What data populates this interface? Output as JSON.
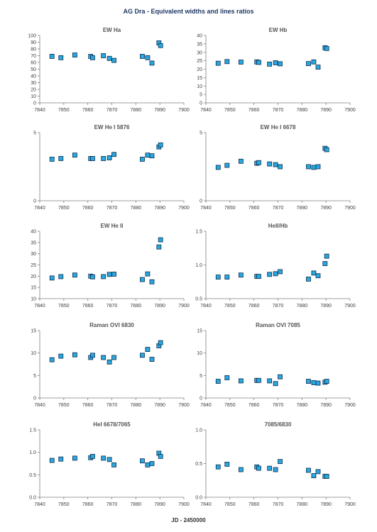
{
  "figure": {
    "title": "AG Dra - Equivalent widths and lines ratios",
    "xlabel": "JD - 2450000",
    "marker_fill": "#29a8e0",
    "marker_stroke": "#0d2d4e",
    "axis_color": "#7f7f7f"
  },
  "chart_data": [
    {
      "type": "scatter",
      "title": "EW Ha",
      "xlim": [
        7840,
        7900
      ],
      "xticks": [
        7840,
        7850,
        7860,
        7870,
        7880,
        7890,
        7900
      ],
      "xtick_labels": [
        "7840",
        "7850",
        "7860",
        "7870",
        "7880",
        "7890",
        "7900"
      ],
      "ylim": [
        0,
        100
      ],
      "yticks": [
        0,
        10,
        20,
        30,
        40,
        50,
        60,
        70,
        80,
        90,
        100
      ],
      "ytick_labels": [
        "0",
        "10",
        "20",
        "30",
        "40",
        "50",
        "60",
        "70",
        "80",
        "90",
        "100"
      ],
      "x": [
        7845.1,
        7848.8,
        7854.6,
        7861.2,
        7862.0,
        7866.5,
        7869.0,
        7870.9,
        7882.7,
        7884.9,
        7886.7,
        7889.6,
        7890.3
      ],
      "y": [
        69,
        67,
        71,
        69,
        67,
        70,
        66,
        63,
        69,
        67,
        59,
        89,
        85
      ]
    },
    {
      "type": "scatter",
      "title": "EW Hb",
      "xlim": [
        7840,
        7900
      ],
      "xticks": [
        7840,
        7850,
        7860,
        7870,
        7880,
        7890,
        7900
      ],
      "xtick_labels": [
        "7840",
        "7850",
        "7860",
        "7870",
        "7880",
        "7890",
        "7900"
      ],
      "ylim": [
        0,
        40
      ],
      "yticks": [
        0,
        5,
        10,
        15,
        20,
        25,
        30,
        35,
        40
      ],
      "ytick_labels": [
        "0",
        "5",
        "10",
        "15",
        "20",
        "25",
        "30",
        "35",
        "40"
      ],
      "x": [
        7845.1,
        7848.8,
        7854.6,
        7861.2,
        7862.0,
        7866.5,
        7869.0,
        7870.9,
        7882.7,
        7884.9,
        7886.7,
        7889.6,
        7890.3
      ],
      "y": [
        23.5,
        24.5,
        24.2,
        24.3,
        24.0,
        23.0,
        23.8,
        23.2,
        23.3,
        24.3,
        21.2,
        32.7,
        32.3
      ]
    },
    {
      "type": "scatter",
      "title": "EW He I 5876",
      "xlim": [
        7840,
        7900
      ],
      "xticks": [
        7840,
        7850,
        7860,
        7870,
        7880,
        7890,
        7900
      ],
      "xtick_labels": [
        "7840",
        "7850",
        "7860",
        "7870",
        "7880",
        "7890",
        "7900"
      ],
      "ylim": [
        0,
        5
      ],
      "yticks": [
        0,
        5
      ],
      "ytick_labels": [
        "0",
        "5"
      ],
      "x": [
        7845.1,
        7848.8,
        7854.6,
        7861.2,
        7862.0,
        7866.5,
        7869.0,
        7870.9,
        7882.7,
        7884.9,
        7886.7,
        7889.6,
        7890.3
      ],
      "y": [
        3.05,
        3.1,
        3.35,
        3.1,
        3.1,
        3.1,
        3.15,
        3.4,
        3.05,
        3.35,
        3.3,
        3.95,
        4.1
      ]
    },
    {
      "type": "scatter",
      "title": "EW He I 6678",
      "xlim": [
        7840,
        7900
      ],
      "xticks": [
        7840,
        7850,
        7860,
        7870,
        7880,
        7890,
        7900
      ],
      "xtick_labels": [
        "7840",
        "7850",
        "7860",
        "7870",
        "7880",
        "7890",
        "7900"
      ],
      "ylim": [
        0,
        5
      ],
      "yticks": [
        0,
        5
      ],
      "ytick_labels": [
        "0",
        "5"
      ],
      "x": [
        7845.1,
        7848.8,
        7854.6,
        7861.2,
        7862.0,
        7866.5,
        7869.0,
        7870.9,
        7882.7,
        7884.9,
        7886.7,
        7889.6,
        7890.3
      ],
      "y": [
        2.45,
        2.6,
        2.9,
        2.75,
        2.8,
        2.7,
        2.65,
        2.5,
        2.5,
        2.45,
        2.5,
        3.85,
        3.75
      ]
    },
    {
      "type": "scatter",
      "title": "EW He II",
      "xlim": [
        7840,
        7900
      ],
      "xticks": [
        7840,
        7850,
        7860,
        7870,
        7880,
        7890,
        7900
      ],
      "xtick_labels": [
        "7840",
        "7850",
        "7860",
        "7870",
        "7880",
        "7890",
        "7900"
      ],
      "ylim": [
        10,
        40
      ],
      "yticks": [
        10,
        15,
        20,
        25,
        30,
        35,
        40
      ],
      "ytick_labels": [
        "10",
        "15",
        "20",
        "25",
        "30",
        "35",
        "40"
      ],
      "x": [
        7845.1,
        7848.8,
        7854.6,
        7861.2,
        7862.0,
        7866.5,
        7869.0,
        7870.9,
        7882.7,
        7884.9,
        7886.7,
        7889.6,
        7890.3
      ],
      "y": [
        19.2,
        19.8,
        20.5,
        20.0,
        19.7,
        19.8,
        20.8,
        20.9,
        18.5,
        21.0,
        17.5,
        33.0,
        36.2
      ]
    },
    {
      "type": "scatter",
      "title": "HeII/Hb",
      "xlim": [
        7840,
        7900
      ],
      "xticks": [
        7840,
        7850,
        7860,
        7870,
        7880,
        7890,
        7900
      ],
      "xtick_labels": [
        "7840",
        "7850",
        "7860",
        "7870",
        "7880",
        "7890",
        "7900"
      ],
      "ylim": [
        0.5,
        1.5
      ],
      "yticks": [
        0.5,
        1.0,
        1.5
      ],
      "ytick_labels": [
        "0.5",
        "1.0",
        "1.5"
      ],
      "x": [
        7845.1,
        7848.8,
        7854.6,
        7861.2,
        7862.0,
        7866.5,
        7869.0,
        7870.9,
        7882.7,
        7884.9,
        7886.7,
        7889.6,
        7890.3
      ],
      "y": [
        0.82,
        0.82,
        0.85,
        0.83,
        0.83,
        0.86,
        0.87,
        0.9,
        0.79,
        0.88,
        0.84,
        1.02,
        1.13
      ]
    },
    {
      "type": "scatter",
      "title": "Raman OVI 6830",
      "xlim": [
        7840,
        7900
      ],
      "xticks": [
        7840,
        7850,
        7860,
        7870,
        7880,
        7890,
        7900
      ],
      "xtick_labels": [
        "7840",
        "7850",
        "7860",
        "7870",
        "7880",
        "7890",
        "7900"
      ],
      "ylim": [
        0,
        15
      ],
      "yticks": [
        0,
        5,
        10,
        15
      ],
      "ytick_labels": [
        "0",
        "5",
        "10",
        "15"
      ],
      "x": [
        7845.1,
        7848.8,
        7854.6,
        7861.2,
        7862.0,
        7866.5,
        7869.0,
        7870.9,
        7882.7,
        7884.9,
        7886.7,
        7889.6,
        7890.3
      ],
      "y": [
        8.5,
        9.3,
        9.6,
        9.0,
        9.5,
        9.0,
        8.0,
        9.0,
        9.5,
        10.8,
        8.6,
        11.6,
        12.3
      ]
    },
    {
      "type": "scatter",
      "title": "Raman OVI 7085",
      "xlim": [
        7840,
        7900
      ],
      "xticks": [
        7840,
        7850,
        7860,
        7870,
        7880,
        7890,
        7900
      ],
      "xtick_labels": [
        "7840",
        "7850",
        "7860",
        "7870",
        "7880",
        "7890",
        "7900"
      ],
      "ylim": [
        0,
        15
      ],
      "yticks": [
        0,
        5,
        10,
        15
      ],
      "ytick_labels": [
        "0",
        "5",
        "10",
        "15"
      ],
      "x": [
        7845.1,
        7848.8,
        7854.6,
        7861.2,
        7862.0,
        7866.5,
        7869.0,
        7870.9,
        7882.7,
        7884.9,
        7886.7,
        7889.6,
        7890.3
      ],
      "y": [
        3.7,
        4.5,
        3.8,
        3.9,
        3.9,
        3.8,
        3.2,
        4.7,
        3.7,
        3.4,
        3.3,
        3.5,
        3.7
      ]
    },
    {
      "type": "scatter",
      "title": "HeI 6678/7065",
      "xlim": [
        7840,
        7900
      ],
      "xticks": [
        7840,
        7850,
        7860,
        7870,
        7880,
        7890,
        7900
      ],
      "xtick_labels": [
        "7840",
        "7850",
        "7860",
        "7870",
        "7880",
        "7890",
        "7900"
      ],
      "ylim": [
        0,
        1.5
      ],
      "yticks": [
        0,
        0.5,
        1.0,
        1.5
      ],
      "ytick_labels": [
        "0.0",
        "0.5",
        "1.0",
        "1.5"
      ],
      "x": [
        7845.1,
        7848.8,
        7854.6,
        7861.2,
        7862.0,
        7866.5,
        7869.0,
        7870.9,
        7882.7,
        7884.9,
        7886.7,
        7889.6,
        7890.3
      ],
      "y": [
        0.82,
        0.85,
        0.87,
        0.88,
        0.91,
        0.87,
        0.84,
        0.72,
        0.81,
        0.72,
        0.75,
        0.98,
        0.91
      ]
    },
    {
      "type": "scatter",
      "title": "7085/6830",
      "xlim": [
        7840,
        7900
      ],
      "xticks": [
        7840,
        7850,
        7860,
        7870,
        7880,
        7890,
        7900
      ],
      "xtick_labels": [
        "7840",
        "7850",
        "7860",
        "7870",
        "7880",
        "7890",
        "7900"
      ],
      "ylim": [
        0,
        1.0
      ],
      "yticks": [
        0,
        0.5,
        1.0
      ],
      "ytick_labels": [
        "0.0",
        "0.5",
        "1.0"
      ],
      "x": [
        7845.1,
        7848.8,
        7854.6,
        7861.2,
        7862.0,
        7866.5,
        7869.0,
        7870.9,
        7882.7,
        7884.9,
        7886.7,
        7889.6,
        7890.3
      ],
      "y": [
        0.45,
        0.49,
        0.41,
        0.45,
        0.43,
        0.43,
        0.41,
        0.53,
        0.4,
        0.32,
        0.38,
        0.31,
        0.31
      ]
    }
  ]
}
